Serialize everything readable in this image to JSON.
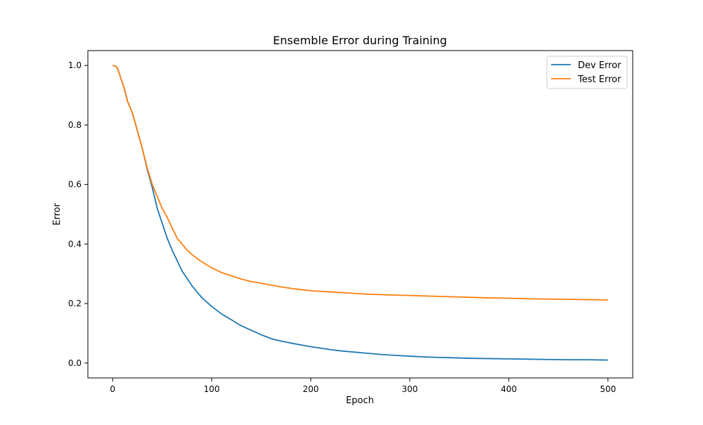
{
  "chart_data": {
    "type": "line",
    "title": "Ensemble Error during Training",
    "xlabel": "Epoch",
    "ylabel": "Error",
    "xlim": [
      -25,
      525
    ],
    "ylim": [
      -0.05,
      1.05
    ],
    "xticks": [
      0,
      100,
      200,
      300,
      400,
      500
    ],
    "yticks": [
      0.0,
      0.2,
      0.4,
      0.6,
      0.8,
      1.0
    ],
    "xtick_labels": [
      "0",
      "100",
      "200",
      "300",
      "400",
      "500"
    ],
    "ytick_labels": [
      "0.0",
      "0.2",
      "0.4",
      "0.6",
      "0.8",
      "1.0"
    ],
    "grid": false,
    "legend_position": "top-right",
    "series": [
      {
        "name": "Dev Error",
        "color": "#1f77b4",
        "x": [
          0,
          3,
          5,
          8,
          12,
          15,
          20,
          25,
          30,
          35,
          40,
          45,
          50,
          55,
          60,
          65,
          70,
          75,
          80,
          85,
          90,
          100,
          110,
          120,
          130,
          140,
          150,
          160,
          170,
          180,
          190,
          200,
          210,
          220,
          230,
          240,
          250,
          260,
          270,
          280,
          290,
          300,
          320,
          340,
          360,
          380,
          400,
          420,
          440,
          460,
          480,
          500
        ],
        "y": [
          1.0,
          0.998,
          0.99,
          0.96,
          0.92,
          0.88,
          0.84,
          0.78,
          0.72,
          0.65,
          0.59,
          0.52,
          0.47,
          0.42,
          0.38,
          0.345,
          0.31,
          0.285,
          0.26,
          0.24,
          0.22,
          0.19,
          0.165,
          0.145,
          0.125,
          0.11,
          0.095,
          0.082,
          0.074,
          0.067,
          0.061,
          0.055,
          0.05,
          0.045,
          0.041,
          0.038,
          0.035,
          0.032,
          0.029,
          0.027,
          0.025,
          0.023,
          0.02,
          0.018,
          0.016,
          0.015,
          0.014,
          0.013,
          0.012,
          0.011,
          0.011,
          0.01
        ]
      },
      {
        "name": "Test Error",
        "color": "#ff7f0e",
        "x": [
          0,
          3,
          5,
          8,
          12,
          15,
          20,
          25,
          30,
          35,
          40,
          45,
          50,
          55,
          60,
          65,
          70,
          75,
          80,
          85,
          90,
          100,
          110,
          120,
          130,
          140,
          150,
          160,
          170,
          180,
          190,
          200,
          210,
          220,
          230,
          240,
          250,
          260,
          270,
          280,
          290,
          300,
          320,
          340,
          360,
          380,
          400,
          420,
          440,
          460,
          480,
          500
        ],
        "y": [
          1.0,
          0.998,
          0.99,
          0.96,
          0.92,
          0.88,
          0.84,
          0.78,
          0.72,
          0.655,
          0.6,
          0.56,
          0.52,
          0.49,
          0.455,
          0.42,
          0.4,
          0.38,
          0.365,
          0.352,
          0.34,
          0.32,
          0.304,
          0.293,
          0.282,
          0.274,
          0.268,
          0.262,
          0.256,
          0.251,
          0.247,
          0.243,
          0.241,
          0.239,
          0.237,
          0.235,
          0.233,
          0.231,
          0.23,
          0.229,
          0.228,
          0.227,
          0.225,
          0.223,
          0.221,
          0.219,
          0.218,
          0.216,
          0.215,
          0.214,
          0.213,
          0.212
        ]
      }
    ]
  }
}
